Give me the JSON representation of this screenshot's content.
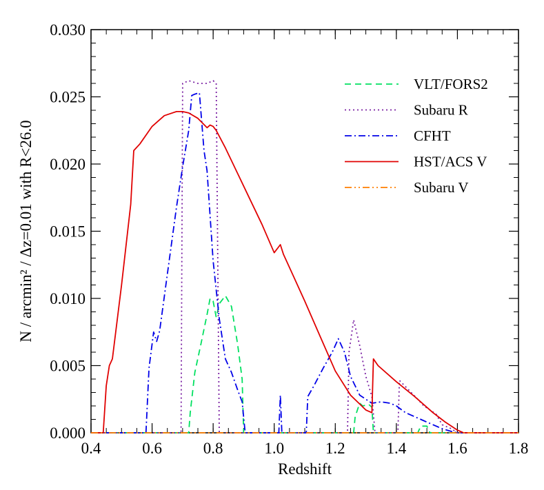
{
  "chart_data": {
    "type": "line",
    "title": "",
    "xlabel": "Redshift",
    "ylabel": "N / arcmin² / Δz=0.01 with R<26.0",
    "xlim": [
      0.4,
      1.8
    ],
    "ylim": [
      0.0,
      0.03
    ],
    "xticks": [
      0.4,
      0.6,
      0.8,
      1.0,
      1.2,
      1.4,
      1.6,
      1.8
    ],
    "xtick_labels": [
      "0.4",
      "0.6",
      "0.8",
      "1.0",
      "1.2",
      "1.4",
      "1.6",
      "1.8"
    ],
    "yticks": [
      0.0,
      0.005,
      0.01,
      0.015,
      0.02,
      0.025,
      0.03
    ],
    "ytick_labels": [
      "0.000",
      "0.005",
      "0.010",
      "0.015",
      "0.020",
      "0.025",
      "0.030"
    ],
    "grid": false,
    "legend_position": "top-right",
    "series": [
      {
        "name": "VLT/FORS2",
        "color": "#00e060",
        "dash": "dashed",
        "x": [
          0.4,
          0.72,
          0.725,
          0.74,
          0.76,
          0.78,
          0.79,
          0.8,
          0.81,
          0.82,
          0.84,
          0.86,
          0.88,
          0.895,
          0.9,
          1.26,
          1.265,
          1.28,
          1.29,
          1.31,
          1.32,
          1.325,
          1.47,
          1.48,
          1.5,
          1.51,
          1.8
        ],
        "y": [
          0.0,
          0.0,
          0.0015,
          0.0045,
          0.0066,
          0.0088,
          0.01,
          0.0098,
          0.0086,
          0.0096,
          0.0102,
          0.0094,
          0.0066,
          0.004,
          0.0,
          0.0,
          0.0012,
          0.0022,
          0.002,
          0.0021,
          0.0019,
          0.0,
          0.0,
          0.0005,
          0.0005,
          0.0,
          0.0
        ]
      },
      {
        "name": "Subaru R",
        "color": "#7a1fa2",
        "dash": "dotted",
        "x": [
          0.4,
          0.695,
          0.7,
          0.72,
          0.75,
          0.78,
          0.8,
          0.81,
          0.82,
          1.24,
          1.245,
          1.26,
          1.28,
          1.3,
          1.32,
          1.33,
          1.405,
          1.41,
          1.44,
          1.47,
          1.49,
          1.51,
          1.53,
          1.55,
          1.58,
          1.6,
          1.8
        ],
        "y": [
          0.0,
          0.0,
          0.026,
          0.0262,
          0.026,
          0.026,
          0.0262,
          0.026,
          0.0,
          0.0,
          0.006,
          0.0084,
          0.0065,
          0.0042,
          0.0027,
          0.0,
          0.0,
          0.0039,
          0.0032,
          0.0025,
          0.002,
          0.0017,
          0.0014,
          0.0006,
          0.0003,
          0.0,
          0.0
        ]
      },
      {
        "name": "CFHT",
        "color": "#0000e8",
        "dash": "dashdot",
        "x": [
          0.4,
          0.58,
          0.59,
          0.605,
          0.615,
          0.625,
          0.65,
          0.68,
          0.7,
          0.72,
          0.73,
          0.74,
          0.755,
          0.77,
          0.78,
          0.8,
          0.82,
          0.84,
          0.86,
          0.88,
          0.895,
          0.905,
          1.015,
          1.02,
          1.025,
          1.105,
          1.11,
          1.13,
          1.16,
          1.19,
          1.21,
          1.23,
          1.25,
          1.28,
          1.32,
          1.35,
          1.38,
          1.4,
          1.43,
          1.46,
          1.49,
          1.52,
          1.55,
          1.58,
          1.6,
          1.8
        ],
        "y": [
          0.0,
          0.0,
          0.0048,
          0.0075,
          0.0068,
          0.0076,
          0.0118,
          0.0168,
          0.0198,
          0.0225,
          0.0251,
          0.0252,
          0.0253,
          0.021,
          0.0195,
          0.0128,
          0.0085,
          0.0055,
          0.0045,
          0.0032,
          0.0023,
          0.0,
          0.0,
          0.0028,
          0.0,
          0.0,
          0.0027,
          0.0035,
          0.0048,
          0.006,
          0.007,
          0.006,
          0.0042,
          0.0028,
          0.0022,
          0.0023,
          0.0022,
          0.002,
          0.0015,
          0.0012,
          0.0009,
          0.0006,
          0.0003,
          0.0001,
          0.0,
          0.0
        ]
      },
      {
        "name": "HST/ACS V",
        "color": "#e00000",
        "dash": "solid",
        "x": [
          0.4,
          0.44,
          0.45,
          0.46,
          0.47,
          0.5,
          0.53,
          0.54,
          0.56,
          0.6,
          0.64,
          0.68,
          0.7,
          0.72,
          0.75,
          0.78,
          0.79,
          0.8,
          0.81,
          0.84,
          0.88,
          0.92,
          0.96,
          1.0,
          1.02,
          1.03,
          1.06,
          1.1,
          1.15,
          1.2,
          1.25,
          1.3,
          1.32,
          1.325,
          1.34,
          1.4,
          1.46,
          1.52,
          1.56,
          1.6,
          1.62,
          1.8
        ],
        "y": [
          0.0,
          0.0,
          0.0035,
          0.005,
          0.0055,
          0.011,
          0.017,
          0.021,
          0.0215,
          0.0228,
          0.0236,
          0.0239,
          0.0239,
          0.0238,
          0.0234,
          0.0227,
          0.0229,
          0.0228,
          0.0225,
          0.0212,
          0.0193,
          0.0174,
          0.0155,
          0.0134,
          0.014,
          0.0133,
          0.0118,
          0.0098,
          0.0072,
          0.0046,
          0.0028,
          0.0017,
          0.0015,
          0.0055,
          0.005,
          0.0038,
          0.0027,
          0.0015,
          0.0008,
          0.0002,
          0.0,
          0.0
        ]
      },
      {
        "name": "Subaru V",
        "color": "#ff7f00",
        "dash": "dashdotdot",
        "x": [
          0.4,
          1.8
        ],
        "y": [
          0.0,
          0.0
        ]
      }
    ]
  }
}
